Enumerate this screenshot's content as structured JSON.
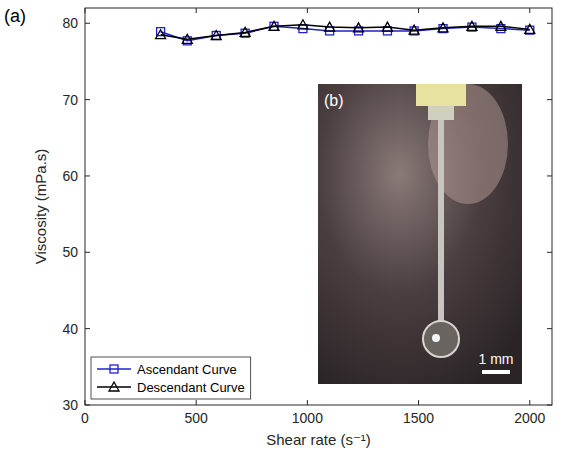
{
  "chart_data": {
    "type": "line",
    "x_label": "Shear rate (s⁻¹)",
    "y_label": "Viscosity (mPa.s)",
    "annotations": [
      "(a)",
      "(b)",
      "1 mm"
    ],
    "x": [
      340,
      460,
      590,
      720,
      850,
      980,
      1100,
      1230,
      1360,
      1480,
      1610,
      1740,
      1870,
      2000
    ],
    "series": [
      {
        "name": "Ascendant Curve",
        "color": "#2020d0",
        "marker": "square",
        "line_style": "solid",
        "values": [
          78.9,
          77.7,
          78.4,
          78.7,
          79.6,
          79.3,
          79.0,
          79.0,
          79.0,
          79.0,
          79.3,
          79.5,
          79.3,
          79.1
        ]
      },
      {
        "name": "Descendant Curve",
        "color": "#000000",
        "marker": "triangle",
        "line_style": "solid",
        "values": [
          78.5,
          77.9,
          78.4,
          78.8,
          79.6,
          79.8,
          79.5,
          79.4,
          79.5,
          79.1,
          79.4,
          79.6,
          79.6,
          79.2
        ]
      }
    ],
    "xlim": [
      0,
      2100
    ],
    "xticks": [
      0,
      500,
      1000,
      1500,
      2000
    ],
    "ylim": [
      30,
      82
    ],
    "yticks": [
      30,
      40,
      50,
      60,
      70,
      80
    ],
    "grid": false,
    "legend": "lower left"
  }
}
